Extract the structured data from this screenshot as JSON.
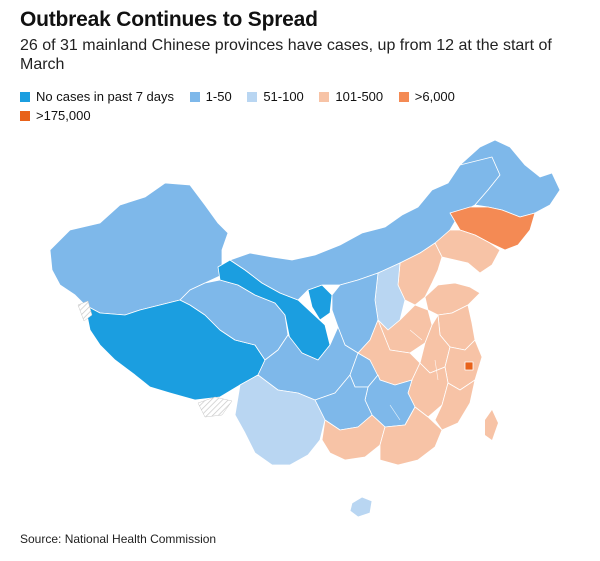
{
  "title": "Outbreak Continues to Spread",
  "subtitle": "26 of 31 mainland Chinese provinces have cases, up from 12 at the start of March",
  "legend": [
    {
      "label": "No cases in past 7 days",
      "color": "#1b9ee0"
    },
    {
      "label": "1-50",
      "color": "#7eb8ea"
    },
    {
      "label": "51-100",
      "color": "#b9d6f2"
    },
    {
      "label": "101-500",
      "color": "#f7c3a6"
    },
    {
      "label": ">6,000",
      "color": "#f48a54"
    },
    {
      "label": ">175,000",
      "color": "#e8621a"
    }
  ],
  "source": "Source: National Health Commission"
}
